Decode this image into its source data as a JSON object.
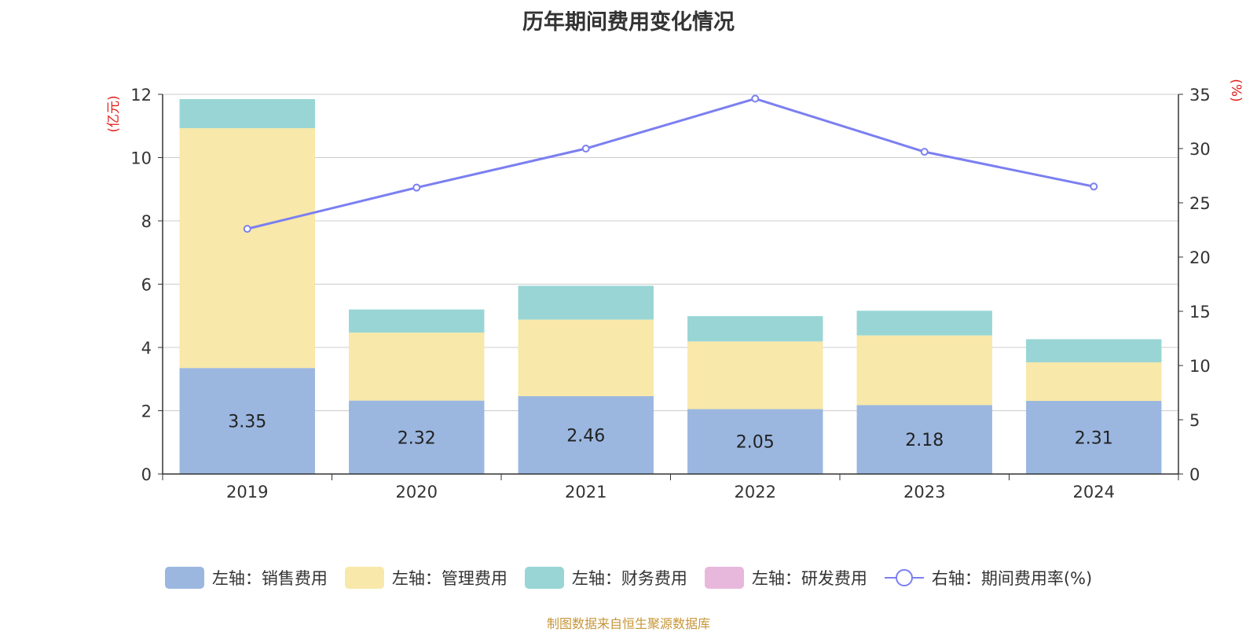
{
  "title": "历年期间费用变化情况",
  "source": "制图数据来自恒生聚源数据库",
  "chart_data": {
    "type": "bar",
    "stacked": true,
    "categories": [
      "2019",
      "2020",
      "2021",
      "2022",
      "2023",
      "2024"
    ],
    "y_left": {
      "unit": "(亿元)",
      "ylim": [
        0,
        12
      ],
      "ticks": [
        "0",
        "2",
        "4",
        "6",
        "8",
        "10",
        "12"
      ]
    },
    "y_right": {
      "unit": "(%)",
      "ylim": [
        0,
        35
      ],
      "ticks": [
        "0",
        "5",
        "10",
        "15",
        "20",
        "25",
        "30",
        "35"
      ]
    },
    "grid": true,
    "legend_position": "bottom",
    "series": [
      {
        "name": "左轴：销售费用",
        "axis": "left",
        "color": "#9bb7e0",
        "values": [
          3.35,
          2.32,
          2.46,
          2.05,
          2.18,
          2.31
        ],
        "labels": [
          "3.35",
          "2.32",
          "2.46",
          "2.05",
          "2.18",
          "2.31"
        ]
      },
      {
        "name": "左轴：管理费用",
        "axis": "left",
        "color": "#f8e8a9",
        "values": [
          7.58,
          2.15,
          2.42,
          2.14,
          2.2,
          1.22
        ]
      },
      {
        "name": "左轴：财务费用",
        "axis": "left",
        "color": "#99d5d5",
        "values": [
          0.92,
          0.73,
          1.07,
          0.8,
          0.78,
          0.73
        ]
      },
      {
        "name": "左轴：研发费用",
        "axis": "left",
        "color": "#e8b8dc",
        "values": [
          0,
          0,
          0,
          0,
          0,
          0
        ]
      },
      {
        "name": "右轴：期间费用率(%)",
        "axis": "right",
        "type": "line",
        "color": "#7b7ff0",
        "values": [
          22.6,
          26.4,
          30.0,
          34.6,
          29.7,
          26.5
        ]
      }
    ]
  }
}
